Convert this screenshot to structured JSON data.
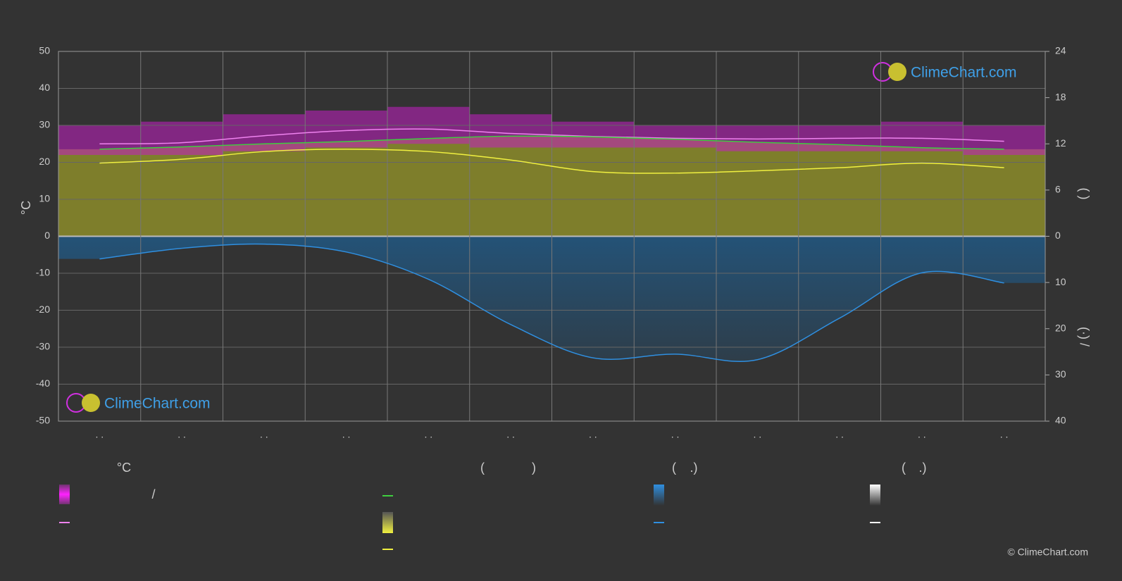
{
  "chart_data": {
    "type": "climate",
    "y_label": "°C",
    "y2_label": "(         )",
    "y3_label": "(·)       /",
    "categories": [
      ". .",
      ". .",
      ". .",
      ". .",
      ". .",
      ". .",
      ". .",
      ". .",
      ". .",
      ". .",
      ". .",
      ". ."
    ],
    "ylim": [
      -50,
      50
    ],
    "yticks": [
      -50,
      -40,
      -30,
      -20,
      -10,
      0,
      10,
      20,
      30,
      40,
      50
    ],
    "y2lim": [
      0,
      24
    ],
    "y2ticks": [
      0,
      6,
      12,
      18,
      24
    ],
    "y3lim": [
      0,
      40
    ],
    "y3ticks": [
      0,
      10,
      20,
      30,
      40
    ],
    "grid": true,
    "temp_band": {
      "color": "#c21ec2",
      "max": [
        30,
        31,
        33,
        34,
        35,
        33,
        31,
        30,
        30,
        30,
        31,
        30
      ],
      "min": [
        22,
        22,
        23,
        24,
        25,
        24,
        24,
        24,
        23,
        23,
        23,
        22
      ]
    },
    "series": [
      {
        "color": "#ee82ee",
        "axis": "y",
        "values": [
          25.0,
          25.3,
          27.2,
          28.6,
          29.0,
          27.8,
          27.0,
          26.5,
          26.3,
          26.5,
          26.5,
          25.7
        ]
      },
      {
        "color": "#3ecf3e",
        "axis": "y2",
        "fill": "#8c8c2a",
        "values": [
          11.3,
          11.6,
          12.0,
          12.3,
          12.7,
          13.0,
          12.9,
          12.6,
          12.2,
          11.9,
          11.5,
          11.3
        ]
      },
      {
        "color": "#f0f040",
        "axis": "y2",
        "values": [
          9.5,
          10.0,
          11.0,
          11.3,
          11.0,
          9.9,
          8.4,
          8.2,
          8.5,
          8.9,
          9.5,
          8.9
        ]
      },
      {
        "color": "#2f8fe0",
        "axis": "y3",
        "fill": "#1f5c8c",
        "values": [
          4.9,
          2.6,
          1.7,
          3.4,
          9.3,
          19.1,
          26.3,
          25.5,
          26.7,
          17.7,
          7.9,
          10.1
        ]
      }
    ],
    "legend_headers": [
      "°C",
      "(",
      ")",
      "(",
      ".)",
      "(",
      ".)"
    ],
    "legend_text": "/",
    "brand": "ClimeChart.com",
    "copyright": "© ClimeChart.com"
  }
}
